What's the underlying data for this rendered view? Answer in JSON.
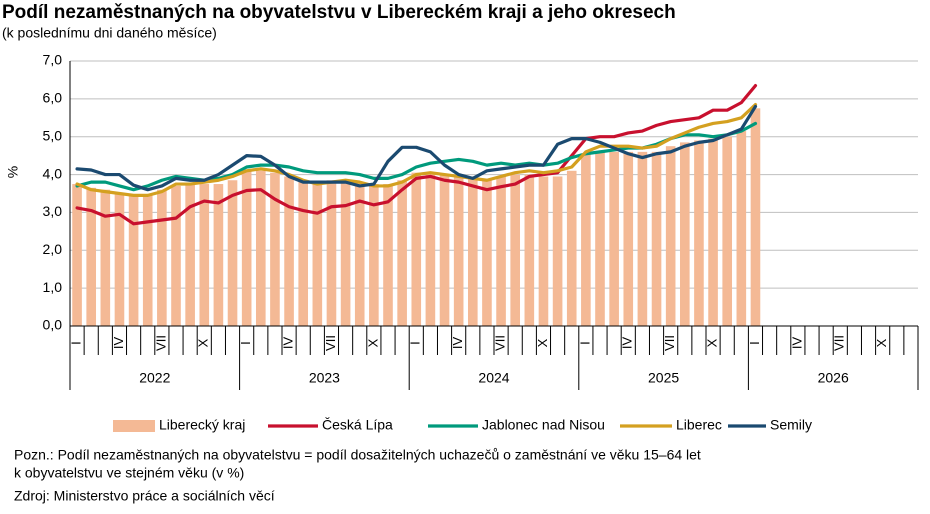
{
  "chart_data": {
    "type": "combo",
    "title": "Podíl nezaměstnaných na obyvatelstvu v Libereckém kraji a jeho okresech",
    "subtitle": "(k poslednímu dni daného měsíce)",
    "y_label": "%",
    "categories": [
      "I",
      null,
      null,
      "IV",
      null,
      null,
      "VII",
      null,
      null,
      "X",
      null,
      null,
      "I",
      null,
      null,
      "IV",
      null,
      null,
      "VII",
      null,
      null,
      "X",
      null,
      null,
      "I",
      null,
      null,
      "IV",
      null,
      null,
      "VII",
      null,
      null,
      "X",
      null,
      null,
      "I",
      null,
      null,
      "IV",
      null,
      null,
      "VII",
      null,
      null,
      "X",
      null,
      null,
      "I",
      null,
      null,
      "IV",
      null,
      null,
      "VII",
      null,
      null,
      "X",
      null,
      null
    ],
    "years": [
      "2022",
      "2023",
      "2024",
      "2025",
      "2026"
    ],
    "ylim": [
      0,
      7
    ],
    "yticks": [
      {
        "value": 0,
        "label": "0,0"
      },
      {
        "value": 1,
        "label": "1,0"
      },
      {
        "value": 2,
        "label": "2,0"
      },
      {
        "value": 3,
        "label": "3,0"
      },
      {
        "value": 4,
        "label": "4,0"
      },
      {
        "value": 5,
        "label": "5,0"
      },
      {
        "value": 6,
        "label": "6,0"
      },
      {
        "value": 7,
        "label": "7,0"
      }
    ],
    "grid": true,
    "series": [
      {
        "name": "Liberecký kraj",
        "type": "bar",
        "color": "#f4b995",
        "values": [
          3.75,
          3.65,
          3.6,
          3.5,
          3.45,
          3.45,
          3.6,
          3.7,
          3.75,
          3.75,
          3.75,
          3.85,
          4.1,
          4.1,
          4.05,
          3.95,
          3.85,
          3.8,
          3.85,
          3.85,
          3.8,
          3.75,
          3.75,
          3.85,
          4.05,
          4.05,
          4.0,
          3.95,
          3.9,
          3.85,
          3.95,
          4.0,
          4.0,
          3.95,
          3.95,
          4.1,
          4.55,
          4.6,
          4.6,
          4.6,
          4.6,
          4.6,
          4.75,
          4.85,
          4.9,
          4.95,
          5.0,
          5.15,
          5.75,
          null,
          null,
          null,
          null,
          null,
          null,
          null,
          null,
          null,
          null,
          null
        ]
      },
      {
        "name": "Česká Lípa",
        "type": "line",
        "color": "#c8102e",
        "values": [
          3.12,
          3.05,
          2.9,
          2.95,
          2.7,
          2.75,
          2.8,
          2.85,
          3.15,
          3.3,
          3.25,
          3.45,
          3.58,
          3.6,
          3.35,
          3.15,
          3.05,
          2.98,
          3.15,
          3.18,
          3.3,
          3.2,
          3.28,
          3.6,
          3.9,
          3.95,
          3.85,
          3.8,
          3.7,
          3.6,
          3.68,
          3.75,
          3.95,
          4.0,
          4.05,
          4.5,
          4.95,
          5.0,
          5.0,
          5.1,
          5.15,
          5.3,
          5.4,
          5.45,
          5.5,
          5.7,
          5.7,
          5.9,
          6.35,
          null,
          null,
          null,
          null,
          null,
          null,
          null,
          null,
          null,
          null,
          null
        ]
      },
      {
        "name": "Jablonec nad Nisou",
        "type": "line",
        "color": "#009a7c",
        "values": [
          3.7,
          3.8,
          3.8,
          3.7,
          3.6,
          3.7,
          3.85,
          3.95,
          3.9,
          3.85,
          3.9,
          4.0,
          4.2,
          4.25,
          4.25,
          4.2,
          4.1,
          4.05,
          4.05,
          4.05,
          4.0,
          3.9,
          3.9,
          4.0,
          4.2,
          4.3,
          4.35,
          4.4,
          4.35,
          4.25,
          4.3,
          4.25,
          4.3,
          4.25,
          4.3,
          4.45,
          4.55,
          4.6,
          4.65,
          4.7,
          4.7,
          4.8,
          4.95,
          5.05,
          5.05,
          5.0,
          5.05,
          5.15,
          5.35,
          null,
          null,
          null,
          null,
          null,
          null,
          null,
          null,
          null,
          null,
          null
        ]
      },
      {
        "name": "Liberec",
        "type": "line",
        "color": "#d4a020",
        "values": [
          3.75,
          3.6,
          3.55,
          3.5,
          3.45,
          3.45,
          3.55,
          3.75,
          3.75,
          3.8,
          3.85,
          3.95,
          4.1,
          4.15,
          4.1,
          4.0,
          3.85,
          3.75,
          3.8,
          3.85,
          3.8,
          3.7,
          3.7,
          3.8,
          4.0,
          4.05,
          4.0,
          3.95,
          3.9,
          3.85,
          3.95,
          4.05,
          4.1,
          4.05,
          4.1,
          4.2,
          4.6,
          4.75,
          4.75,
          4.75,
          4.7,
          4.75,
          4.95,
          5.1,
          5.25,
          5.35,
          5.4,
          5.5,
          5.85,
          null,
          null,
          null,
          null,
          null,
          null,
          null,
          null,
          null,
          null,
          null
        ]
      },
      {
        "name": "Semily",
        "type": "line",
        "color": "#1b4a70",
        "values": [
          4.15,
          4.12,
          4.0,
          4.0,
          3.72,
          3.6,
          3.7,
          3.9,
          3.85,
          3.85,
          4.0,
          4.25,
          4.5,
          4.48,
          4.25,
          3.95,
          3.8,
          3.8,
          3.8,
          3.8,
          3.7,
          3.75,
          4.35,
          4.72,
          4.72,
          4.6,
          4.25,
          4.0,
          3.9,
          4.1,
          4.15,
          4.2,
          4.25,
          4.25,
          4.8,
          4.95,
          4.95,
          4.85,
          4.7,
          4.55,
          4.45,
          4.55,
          4.6,
          4.75,
          4.85,
          4.9,
          5.05,
          5.2,
          5.8,
          null,
          null,
          null,
          null,
          null,
          null,
          null,
          null,
          null,
          null,
          null
        ]
      }
    ],
    "note": [
      "Pozn.: Podíl nezaměstnaných na obyvatelstvu  = podíl dosažitelných uchazečů o zaměstnání  ve věku 15–64 let",
      "k obyvatelstvu  ve stejném věku  (v %)"
    ],
    "source": "Zdroj: Ministerstvo  práce a sociálních věcí"
  }
}
